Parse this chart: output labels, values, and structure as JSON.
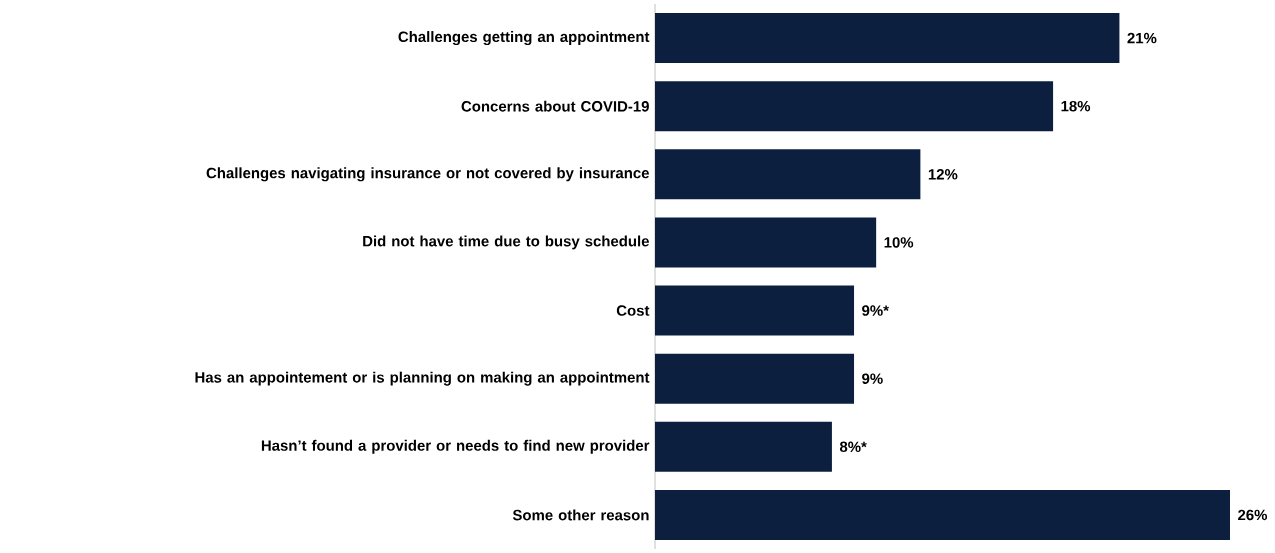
{
  "chart_data": {
    "type": "bar",
    "orientation": "horizontal",
    "categories": [
      "Challenges getting an appointment",
      "Concerns about COVID-19",
      "Challenges navigating insurance or not covered by insurance",
      "Did not have time due to busy schedule",
      "Cost",
      "Has an appointement or is planning on making an appointment",
      "Hasn’t found a provider or needs to find new provider",
      "Some other reason"
    ],
    "values": [
      21,
      18,
      12,
      10,
      9,
      9,
      8,
      26
    ],
    "value_labels": [
      "21%",
      "18%",
      "12%",
      "10%",
      "9%*",
      "9%",
      "8%*",
      "26%"
    ],
    "color": "#0c1f3f"
  }
}
